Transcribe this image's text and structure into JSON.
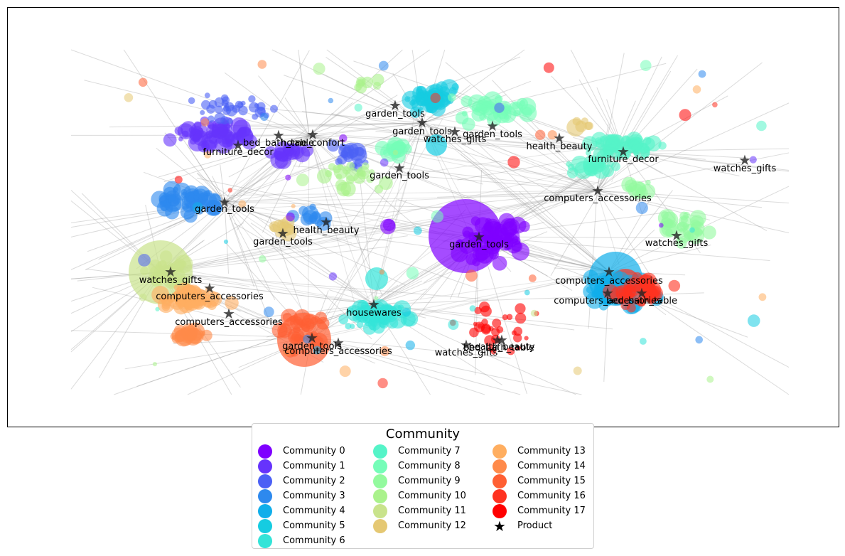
{
  "chart_data": {
    "type": "network",
    "title": "",
    "legend": {
      "title": "Community",
      "placement": "bottom-center",
      "entries": [
        {
          "label": "Community 0",
          "color": "#7f00ff"
        },
        {
          "label": "Community 1",
          "color": "#6633fc"
        },
        {
          "label": "Community 2",
          "color": "#4b60f5"
        },
        {
          "label": "Community 3",
          "color": "#2d89ee"
        },
        {
          "label": "Community 4",
          "color": "#10aeea"
        },
        {
          "label": "Community 5",
          "color": "#15cce1"
        },
        {
          "label": "Community 6",
          "color": "#33e4d8"
        },
        {
          "label": "Community 7",
          "color": "#55f4c8"
        },
        {
          "label": "Community 8",
          "color": "#75fdb8"
        },
        {
          "label": "Community 9",
          "color": "#93fa9e"
        },
        {
          "label": "Community 10",
          "color": "#aaf28c"
        },
        {
          "label": "Community 11",
          "color": "#c9e38c"
        },
        {
          "label": "Community 12",
          "color": "#e5c873"
        },
        {
          "label": "Community 13",
          "color": "#ffae60"
        },
        {
          "label": "Community 14",
          "color": "#ff8a4a"
        },
        {
          "label": "Community 15",
          "color": "#ff5f33"
        },
        {
          "label": "Community 16",
          "color": "#ff3220"
        },
        {
          "label": "Community 17",
          "color": "#ff0000"
        },
        {
          "label": "Product",
          "marker": "star",
          "color": "#000000"
        }
      ]
    },
    "product_labels": [
      "garden_tools",
      "garden_tools",
      "watches_gifts",
      "garden_tools",
      "health_beauty",
      "bed_bath_table",
      "home_confort",
      "furniture_decor",
      "furniture_decor",
      "watches_gifts",
      "garden_tools",
      "computers_accessories",
      "garden_tools",
      "health_beauty",
      "garden_tools",
      "garden_tools",
      "watches_gifts",
      "watches_gifts",
      "computers_accessories",
      "computers_accessories",
      "computers_accessories",
      "bed_bath_table",
      "computers_accessories",
      "housewares",
      "garden_tools",
      "computers_accessories",
      "watches_gifts",
      "health_beauty",
      "bed_bath_table"
    ]
  }
}
